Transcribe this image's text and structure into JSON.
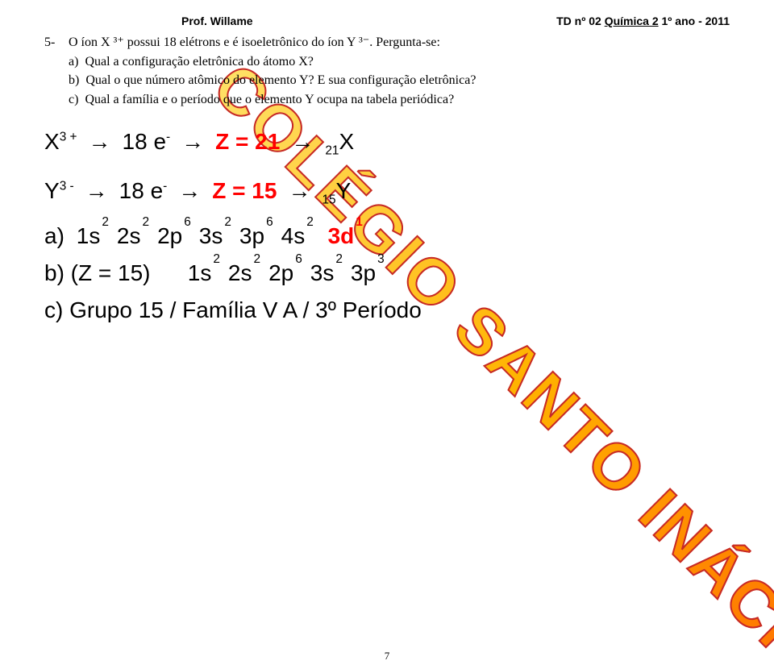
{
  "watermark_text": "COLÉGIO SANTO INÁCIO",
  "page_number": "7",
  "header_left": "Prof. Willame",
  "header_right_prefix": "TD nº 02 ",
  "header_right_underlined": "Química 2",
  "header_right_suffix": " 1º ano - 2011",
  "question_num": "5-",
  "question_line1": "O íon X ³⁺ possui 18 elétrons e é isoeletrônico do íon Y ³⁻. Pergunta-se:",
  "sub_a": "a)",
  "sub_a_text": "Qual a configuração eletrônica do átomo X?",
  "sub_b": "b)",
  "sub_b_text": "Qual o que número atômico do elemento Y? E sua configuração eletrônica?",
  "sub_c": "c)",
  "sub_c_text": "Qual a família e o período que o elemento Y ocupa na tabela periódica?",
  "work_line1": {
    "ion": "X",
    "ion_charge": "3 +",
    "e_count": "18 e",
    "e_sign": "-",
    "z_label": "Z = 21",
    "result_prefix": "21",
    "result_sym": "X"
  },
  "work_line2": {
    "ion": "Y",
    "ion_charge": "3 -",
    "e_count": "18 e",
    "e_sign": "-",
    "z_label": "Z = 15",
    "result_prefix": "15",
    "result_sym": "Y"
  },
  "answer_a_label": "a)",
  "config_a": [
    {
      "base": "1s",
      "sup": "2"
    },
    {
      "base": "2s",
      "sup": "2"
    },
    {
      "base": "2p",
      "sup": "6"
    },
    {
      "base": "3s",
      "sup": "2"
    },
    {
      "base": "3p",
      "sup": "6"
    },
    {
      "base": "4s",
      "sup": "2"
    }
  ],
  "config_a_last": {
    "base": "3d",
    "sup": "1"
  },
  "answer_b_label": "b) (Z = 15)",
  "config_b": [
    {
      "base": "1s",
      "sup": "2"
    },
    {
      "base": "2s",
      "sup": "2"
    },
    {
      "base": "2p",
      "sup": "6"
    },
    {
      "base": "3s",
      "sup": "2"
    },
    {
      "base": "3p",
      "sup": "3"
    }
  ],
  "answer_c": "c) Grupo 15 / Família V A / 3º Período"
}
